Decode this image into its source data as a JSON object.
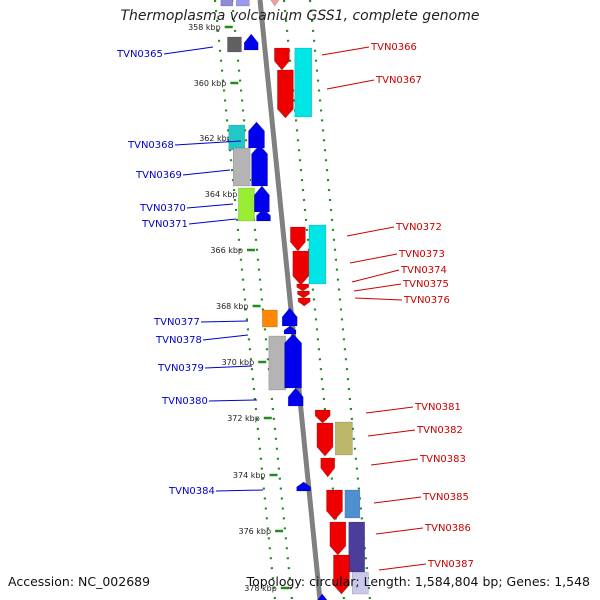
{
  "title": "Thermoplasma volcanium GSS1, complete genome",
  "accession": "Accession: NC_002689",
  "topology": "Topology: circular; Length: 1,584,804 bp; Genes: 1,548",
  "positions": [
    {
      "label": "358 kbp"
    },
    {
      "label": "360 kbp"
    },
    {
      "label": "362 kbp"
    },
    {
      "label": "364 kbp"
    },
    {
      "label": "366 kbp"
    },
    {
      "label": "368 kbp"
    },
    {
      "label": "370 kbp"
    },
    {
      "label": "372 kbp"
    },
    {
      "label": "374 kbp"
    },
    {
      "label": "376 kbp"
    },
    {
      "label": "378 kbp"
    }
  ],
  "forward_genes": [
    "TVN0365",
    "TVN0368",
    "TVN0369",
    "TVN0370",
    "TVN0371",
    "TVN0377",
    "TVN0378",
    "TVN0379",
    "TVN0380",
    "TVN0384"
  ],
  "reverse_genes": [
    "TVN0366",
    "TVN0367",
    "TVN0372",
    "TVN0373",
    "TVN0374",
    "TVN0375",
    "TVN0376",
    "TVN0381",
    "TVN0382",
    "TVN0383",
    "TVN0385",
    "TVN0386",
    "TVN0387"
  ],
  "colors": {
    "forward_cds": "#0000ee",
    "reverse_cds": "#ee0000",
    "forward_label": "#0000cc",
    "reverse_label": "#cc0000",
    "backbone": "#808080",
    "track_dots": "#228b22"
  }
}
